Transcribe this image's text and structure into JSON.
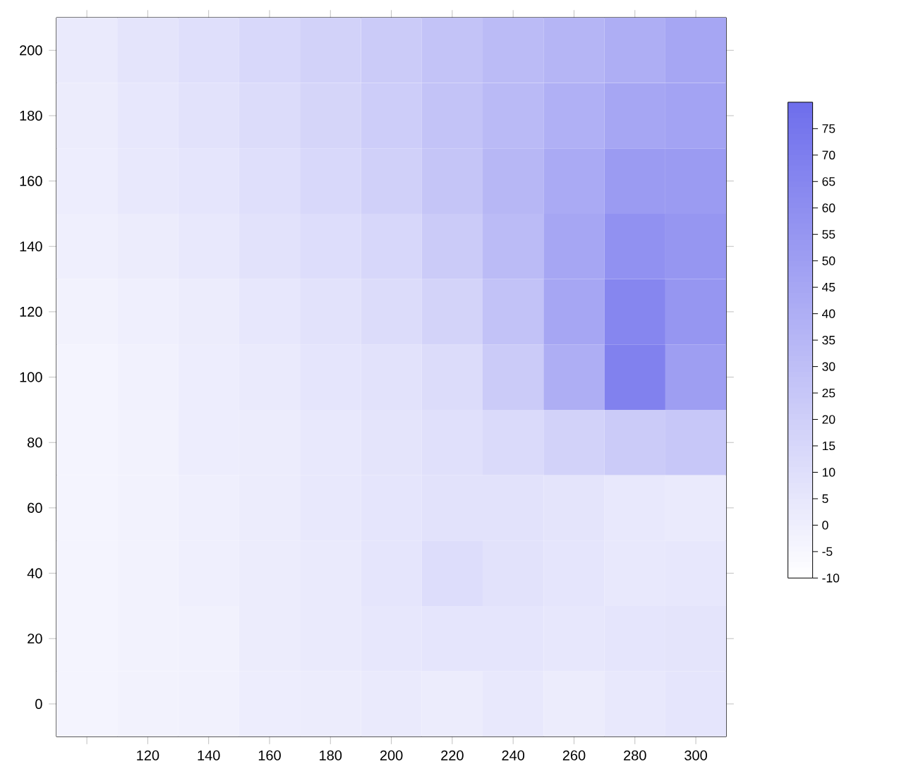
{
  "chart_data": {
    "type": "heatmap",
    "categories": [
      null,
      "120",
      "140",
      "160",
      "180",
      "200",
      "220",
      "240",
      "260",
      "280",
      "300"
    ],
    "y_categories": [
      "200",
      "180",
      "160",
      "140",
      "120",
      "100",
      "80",
      "60",
      "40",
      "20",
      "0"
    ],
    "cells": [
      [
        3,
        7,
        10,
        14,
        18,
        22,
        27,
        32,
        36,
        40,
        45
      ],
      [
        2,
        5,
        8,
        12,
        16,
        21,
        27,
        33,
        39,
        45,
        47
      ],
      [
        1,
        4,
        6,
        10,
        14,
        19,
        26,
        35,
        43,
        52,
        52
      ],
      [
        0,
        2,
        4,
        8,
        11,
        15,
        22,
        32,
        45,
        58,
        55
      ],
      [
        -2,
        0,
        2,
        5,
        8,
        12,
        17,
        28,
        45,
        65,
        55
      ],
      [
        -3,
        -1,
        1,
        3,
        6,
        8,
        12,
        22,
        40,
        68,
        50
      ],
      [
        -3,
        -2,
        1,
        2,
        4,
        7,
        9,
        13,
        18,
        22,
        25
      ],
      [
        -3,
        -2,
        0,
        2,
        4,
        6,
        8,
        8,
        7,
        4,
        3
      ],
      [
        -3,
        -2,
        0,
        2,
        3,
        6,
        11,
        8,
        6,
        4,
        5
      ],
      [
        -3,
        -2,
        -1,
        2,
        3,
        5,
        6,
        6,
        5,
        6,
        7
      ],
      [
        -3,
        -2,
        -1,
        1,
        2,
        3,
        2,
        4,
        2,
        4,
        6
      ]
    ],
    "clim": [
      -10,
      80
    ],
    "cticks": [
      -10,
      -5,
      0,
      5,
      10,
      15,
      20,
      25,
      30,
      35,
      40,
      45,
      50,
      55,
      60,
      65,
      70,
      75
    ]
  }
}
